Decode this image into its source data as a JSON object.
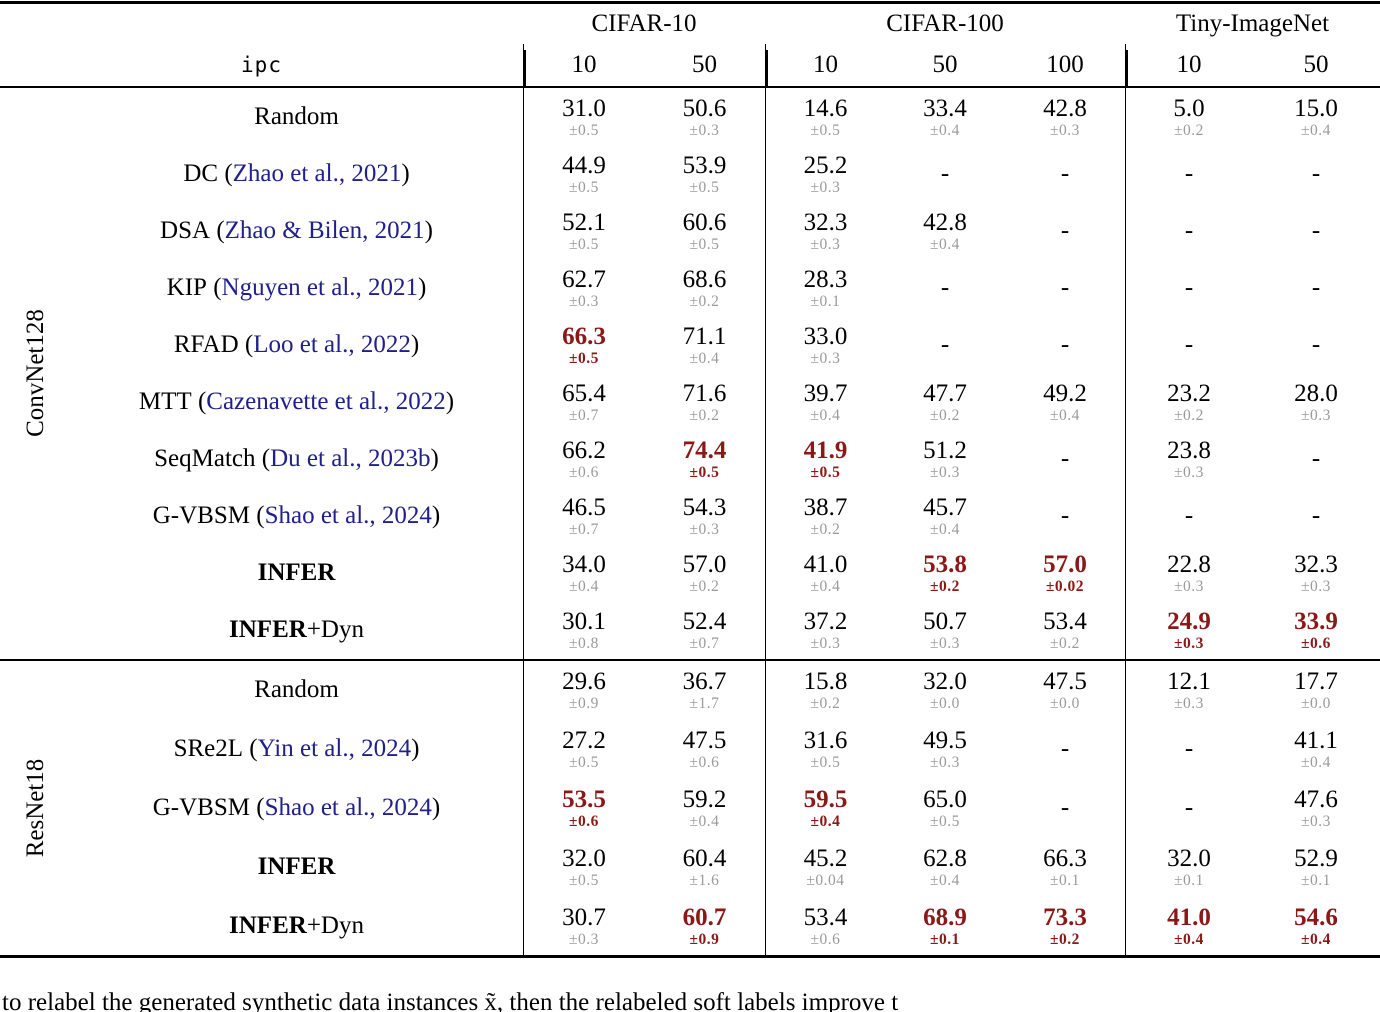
{
  "table": {
    "ipc_label": "ipc",
    "col_groups": [
      {
        "label": "CIFAR-10",
        "ipcs": [
          "10",
          "50"
        ]
      },
      {
        "label": "CIFAR-100",
        "ipcs": [
          "10",
          "50",
          "100"
        ]
      },
      {
        "label": "Tiny-ImageNet",
        "ipcs": [
          "10",
          "50"
        ]
      }
    ],
    "sections": [
      {
        "arch": "ConvNet128",
        "rows": [
          {
            "name": "Random",
            "cells": [
              {
                "v": "31.0",
                "s": "±0.5"
              },
              {
                "v": "50.6",
                "s": "±0.3"
              },
              {
                "v": "14.6",
                "s": "±0.5"
              },
              {
                "v": "33.4",
                "s": "±0.4"
              },
              {
                "v": "42.8",
                "s": "±0.3"
              },
              {
                "v": "5.0",
                "s": "±0.2"
              },
              {
                "v": "15.0",
                "s": "±0.4"
              }
            ]
          },
          {
            "name": "DC",
            "cite": "Zhao et al., 2021",
            "cells": [
              {
                "v": "44.9",
                "s": "±0.5"
              },
              {
                "v": "53.9",
                "s": "±0.5"
              },
              {
                "v": "25.2",
                "s": "±0.3"
              },
              {
                "v": "-"
              },
              {
                "v": "-"
              },
              {
                "v": "-"
              },
              {
                "v": "-"
              }
            ]
          },
          {
            "name": "DSA",
            "cite": "Zhao & Bilen, 2021",
            "cells": [
              {
                "v": "52.1",
                "s": "±0.5"
              },
              {
                "v": "60.6",
                "s": "±0.5"
              },
              {
                "v": "32.3",
                "s": "±0.3"
              },
              {
                "v": "42.8",
                "s": "±0.4"
              },
              {
                "v": "-"
              },
              {
                "v": "-"
              },
              {
                "v": "-"
              }
            ]
          },
          {
            "name": "KIP",
            "cite": "Nguyen et al., 2021",
            "cells": [
              {
                "v": "62.7",
                "s": "±0.3"
              },
              {
                "v": "68.6",
                "s": "±0.2"
              },
              {
                "v": "28.3",
                "s": "±0.1"
              },
              {
                "v": "-"
              },
              {
                "v": "-"
              },
              {
                "v": "-"
              },
              {
                "v": "-"
              }
            ]
          },
          {
            "name": "RFAD",
            "cite": "Loo et al., 2022",
            "cells": [
              {
                "v": "66.3",
                "s": "±0.5",
                "hl": true
              },
              {
                "v": "71.1",
                "s": "±0.4"
              },
              {
                "v": "33.0",
                "s": "±0.3"
              },
              {
                "v": "-"
              },
              {
                "v": "-"
              },
              {
                "v": "-"
              },
              {
                "v": "-"
              }
            ]
          },
          {
            "name": "MTT",
            "cite": "Cazenavette et al., 2022",
            "cells": [
              {
                "v": "65.4",
                "s": "±0.7"
              },
              {
                "v": "71.6",
                "s": "±0.2"
              },
              {
                "v": "39.7",
                "s": "±0.4"
              },
              {
                "v": "47.7",
                "s": "±0.2"
              },
              {
                "v": "49.2",
                "s": "±0.4"
              },
              {
                "v": "23.2",
                "s": "±0.2"
              },
              {
                "v": "28.0",
                "s": "±0.3"
              }
            ]
          },
          {
            "name": "SeqMatch",
            "cite": "Du et al., 2023b",
            "cells": [
              {
                "v": "66.2",
                "s": "±0.6"
              },
              {
                "v": "74.4",
                "s": "±0.5",
                "hl": true
              },
              {
                "v": "41.9",
                "s": "±0.5",
                "hl": true
              },
              {
                "v": "51.2",
                "s": "±0.3"
              },
              {
                "v": "-"
              },
              {
                "v": "23.8",
                "s": "±0.3"
              },
              {
                "v": "-"
              }
            ]
          },
          {
            "name": "G-VBSM",
            "cite": "Shao et al., 2024",
            "cells": [
              {
                "v": "46.5",
                "s": "±0.7"
              },
              {
                "v": "54.3",
                "s": "±0.3"
              },
              {
                "v": "38.7",
                "s": "±0.2"
              },
              {
                "v": "45.7",
                "s": "±0.4"
              },
              {
                "v": "-"
              },
              {
                "v": "-"
              },
              {
                "v": "-"
              }
            ]
          },
          {
            "name": "INFER",
            "bold": true,
            "cells": [
              {
                "v": "34.0",
                "s": "±0.4"
              },
              {
                "v": "57.0",
                "s": "±0.2"
              },
              {
                "v": "41.0",
                "s": "±0.4"
              },
              {
                "v": "53.8",
                "s": "±0.2",
                "hl": true
              },
              {
                "v": "57.0",
                "s": "±0.02",
                "hl": true
              },
              {
                "v": "22.8",
                "s": "±0.3"
              },
              {
                "v": "32.3",
                "s": "±0.3"
              }
            ]
          },
          {
            "name": "INFER",
            "bold": true,
            "suffix": "+Dyn",
            "cells": [
              {
                "v": "30.1",
                "s": "±0.8"
              },
              {
                "v": "52.4",
                "s": "±0.7"
              },
              {
                "v": "37.2",
                "s": "±0.3"
              },
              {
                "v": "50.7",
                "s": "±0.3"
              },
              {
                "v": "53.4",
                "s": "±0.2"
              },
              {
                "v": "24.9",
                "s": "±0.3",
                "hl": true
              },
              {
                "v": "33.9",
                "s": "±0.6",
                "hl": true
              }
            ]
          }
        ]
      },
      {
        "arch": "ResNet18",
        "rows": [
          {
            "name": "Random",
            "cells": [
              {
                "v": "29.6",
                "s": "±0.9"
              },
              {
                "v": "36.7",
                "s": "±1.7"
              },
              {
                "v": "15.8",
                "s": "±0.2"
              },
              {
                "v": "32.0",
                "s": "±0.0"
              },
              {
                "v": "47.5",
                "s": "±0.0"
              },
              {
                "v": "12.1",
                "s": "±0.3"
              },
              {
                "v": "17.7",
                "s": "±0.0"
              }
            ]
          },
          {
            "name": "SRe2L",
            "cite": "Yin et al., 2024",
            "cells": [
              {
                "v": "27.2",
                "s": "±0.5"
              },
              {
                "v": "47.5",
                "s": "±0.6"
              },
              {
                "v": "31.6",
                "s": "±0.5"
              },
              {
                "v": "49.5",
                "s": "±0.3"
              },
              {
                "v": "-"
              },
              {
                "v": "-"
              },
              {
                "v": "41.1",
                "s": "±0.4"
              }
            ]
          },
          {
            "name": "G-VBSM",
            "cite": "Shao et al., 2024",
            "cells": [
              {
                "v": "53.5",
                "s": "±0.6",
                "hl": true
              },
              {
                "v": "59.2",
                "s": "±0.4"
              },
              {
                "v": "59.5",
                "s": "±0.4",
                "hl": true
              },
              {
                "v": "65.0",
                "s": "±0.5"
              },
              {
                "v": "-"
              },
              {
                "v": "-"
              },
              {
                "v": "47.6",
                "s": "±0.3"
              }
            ]
          },
          {
            "name": "INFER",
            "bold": true,
            "cells": [
              {
                "v": "32.0",
                "s": "±0.5"
              },
              {
                "v": "60.4",
                "s": "±1.6"
              },
              {
                "v": "45.2",
                "s": "±0.04"
              },
              {
                "v": "62.8",
                "s": "±0.4"
              },
              {
                "v": "66.3",
                "s": "±0.1"
              },
              {
                "v": "32.0",
                "s": "±0.1"
              },
              {
                "v": "52.9",
                "s": "±0.1"
              }
            ]
          },
          {
            "name": "INFER",
            "bold": true,
            "suffix": "+Dyn",
            "cells": [
              {
                "v": "30.7",
                "s": "±0.3"
              },
              {
                "v": "60.7",
                "s": "±0.9",
                "hl": true
              },
              {
                "v": "53.4",
                "s": "±0.6"
              },
              {
                "v": "68.9",
                "s": "±0.1",
                "hl": true
              },
              {
                "v": "73.3",
                "s": "±0.2",
                "hl": true
              },
              {
                "v": "41.0",
                "s": "±0.4",
                "hl": true
              },
              {
                "v": "54.6",
                "s": "±0.4",
                "hl": true
              }
            ]
          }
        ]
      }
    ],
    "caption_fragment": "to relabel the generated synthetic data instances x̃, then the relabeled soft labels improve t"
  },
  "colors": {
    "highlight": "#8b1717",
    "citation": "#20208c",
    "std_gray": "#9a9a9a"
  }
}
